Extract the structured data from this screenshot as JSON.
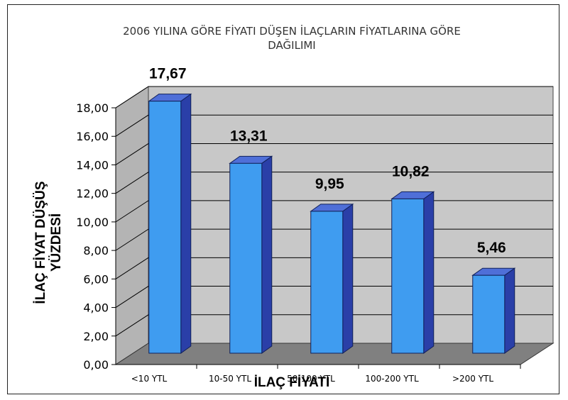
{
  "chart_data": {
    "type": "bar",
    "title_line1": "2006 YILINA GÖRE FİYATI DÜŞEN İLAÇLARIN FİYATLARINA GÖRE",
    "title_line2": "DAĞILIMI",
    "xlabel": "İLAÇ FİYATI",
    "ylabel_line1": "İLAÇ FİYAT DÜŞÜŞ",
    "ylabel_line2": "YÜZDESİ",
    "categories": [
      "<10 YTL",
      "10-50 YTL",
      "50-100 YTL",
      "100-200 YTL",
      ">200 YTL"
    ],
    "values": [
      17.67,
      13.31,
      9.95,
      10.82,
      5.46
    ],
    "value_labels": [
      "17,67",
      "13,31",
      "9,95",
      "10,82",
      "5,46"
    ],
    "ylim": [
      0,
      18
    ],
    "yticks": [
      "0,00",
      "2,00",
      "4,00",
      "6,00",
      "8,00",
      "10,00",
      "12,00",
      "14,00",
      "16,00",
      "18,00"
    ],
    "grid": true,
    "legend": "none",
    "colors": {
      "bar_front": "#3f9cf0",
      "bar_side": "#2a3fa8",
      "bar_top": "#4f6fd8",
      "back_wall": "#c8c8c8",
      "side_wall": "#b4b4b4",
      "floor": "#808080",
      "gridline": "#000000"
    }
  }
}
